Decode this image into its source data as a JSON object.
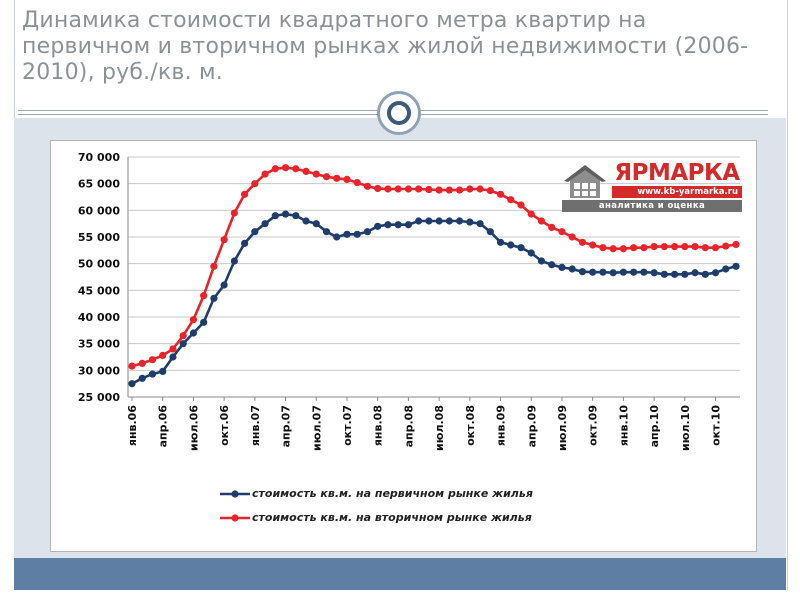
{
  "title": "Динамика стоимости квадратного метра квартир на первичном и вторичном рынках жилой недвижимости (2006-2010), руб./кв. м.",
  "logo": {
    "brand": "ЯРМАРКА",
    "url": "www.kb-yarmarka.ru",
    "tagline": "аналитика и оценка"
  },
  "colors": {
    "primary_series": "#1f3d6b",
    "secondary_series": "#e8232a",
    "footer": "#5e7fa3",
    "title": "#8a9298"
  },
  "chart_data": {
    "type": "line",
    "title": "",
    "xlabel": "",
    "ylabel": "",
    "ylim": [
      25000,
      70000
    ],
    "yticks": [
      "70 000",
      "65 000",
      "60 000",
      "55 000",
      "50 000",
      "45 000",
      "40 000",
      "35 000",
      "30 000",
      "25 000"
    ],
    "ytick_values": [
      70000,
      65000,
      60000,
      55000,
      50000,
      45000,
      40000,
      35000,
      30000,
      25000
    ],
    "xtick_labels": [
      "янв.06",
      "апр.06",
      "июл.06",
      "окт.06",
      "янв.07",
      "апр.07",
      "июл.07",
      "окт.07",
      "янв.08",
      "апр.08",
      "июл.08",
      "окт.08",
      "янв.09",
      "апр.09",
      "июл.09",
      "окт.09",
      "янв.10",
      "апр.10",
      "июл.10",
      "окт.10"
    ],
    "xtick_months": [
      0,
      3,
      6,
      9,
      12,
      15,
      18,
      21,
      24,
      27,
      30,
      33,
      36,
      39,
      42,
      45,
      48,
      51,
      54,
      57
    ],
    "grid": true,
    "legend_position": "bottom",
    "series": [
      {
        "name": "стоимость кв.м. на первичном рынке жилья",
        "color": "#1f3d6b",
        "values": [
          27500,
          28500,
          29300,
          29800,
          32500,
          35000,
          37000,
          39000,
          43500,
          46000,
          50500,
          53800,
          56000,
          57500,
          59000,
          59300,
          59000,
          58000,
          57500,
          56000,
          55000,
          55500,
          55500,
          56000,
          57000,
          57300,
          57300,
          57300,
          58000,
          58000,
          58000,
          58000,
          58000,
          57800,
          57500,
          56000,
          54000,
          53500,
          53000,
          52000,
          50500,
          49800,
          49300,
          49000,
          48500,
          48400,
          48400,
          48300,
          48400,
          48400,
          48400,
          48300,
          48000,
          48000,
          48000,
          48300,
          48000,
          48300,
          49000,
          49500
        ]
      },
      {
        "name": "стоимость кв.м. на вторичном рынке жилья",
        "color": "#e8232a",
        "values": [
          30800,
          31300,
          32000,
          32800,
          34000,
          36500,
          39500,
          44000,
          49500,
          54500,
          59500,
          63000,
          65000,
          66800,
          67800,
          68000,
          67800,
          67300,
          66800,
          66300,
          66000,
          65800,
          65200,
          64500,
          64100,
          64000,
          64000,
          64000,
          64000,
          63900,
          63800,
          63800,
          63800,
          64000,
          64000,
          63700,
          63000,
          62000,
          61000,
          59300,
          58000,
          56800,
          56000,
          55000,
          54000,
          53500,
          53000,
          52800,
          52800,
          53000,
          53000,
          53200,
          53200,
          53200,
          53200,
          53200,
          53000,
          53000,
          53300,
          53600
        ]
      }
    ]
  }
}
